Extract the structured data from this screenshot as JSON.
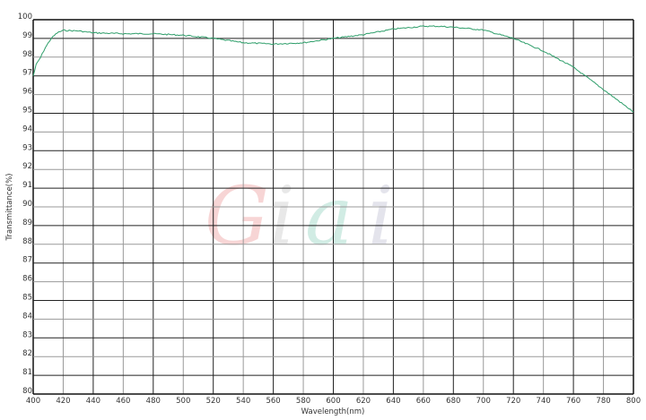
{
  "chart_data": {
    "type": "line",
    "title": "",
    "xlabel": "Wavelength(nm)",
    "ylabel": "Transmittance(%)",
    "xlim": [
      400,
      800
    ],
    "ylim": [
      80,
      100
    ],
    "grid": true,
    "xticks": [
      400,
      420,
      440,
      460,
      480,
      500,
      520,
      540,
      560,
      580,
      600,
      620,
      640,
      660,
      680,
      700,
      720,
      740,
      760,
      780,
      800
    ],
    "yticks": [
      80,
      81,
      82,
      83,
      84,
      85,
      86,
      87,
      88,
      89,
      90,
      91,
      92,
      93,
      94,
      95,
      96,
      97,
      98,
      99,
      100
    ],
    "series": [
      {
        "color": "#2e9e6a",
        "x": [
          400,
          402,
          405,
          408,
          412,
          416,
          420,
          430,
          440,
          460,
          480,
          500,
          520,
          540,
          560,
          580,
          600,
          620,
          640,
          660,
          670,
          680,
          700,
          720,
          740,
          760,
          780,
          800
        ],
        "y": [
          97.0,
          97.6,
          98.0,
          98.5,
          99.0,
          99.3,
          99.43,
          99.4,
          99.3,
          99.25,
          99.25,
          99.17,
          99.0,
          98.77,
          98.7,
          98.77,
          99.0,
          99.2,
          99.5,
          99.65,
          99.65,
          99.6,
          99.45,
          99.0,
          98.33,
          97.46,
          96.27,
          95.07
        ]
      }
    ],
    "watermark": "Giai"
  }
}
